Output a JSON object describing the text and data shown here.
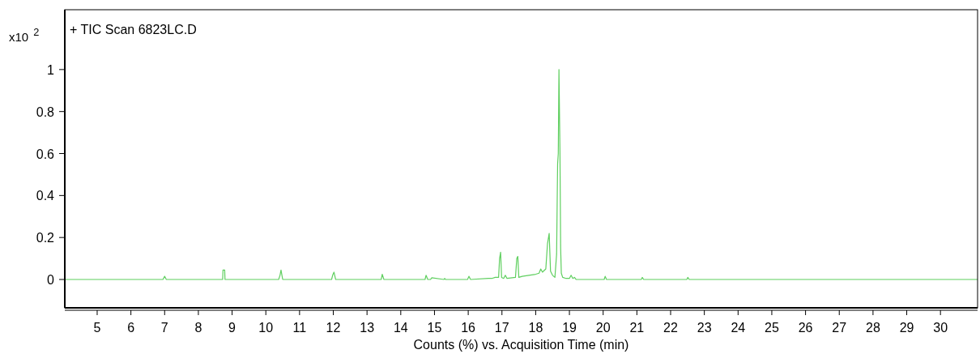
{
  "chart_data": {
    "type": "line",
    "title": "+ TIC Scan 6823LC.D",
    "xlabel": "Counts (%) vs. Acquisition Time (min)",
    "ylabel": "x10$^{2}$",
    "xlim": [
      4.04,
      31.1
    ],
    "xticks": [
      5,
      6,
      7,
      8,
      9,
      10,
      11,
      12,
      13,
      14,
      15,
      16,
      17,
      18,
      19,
      20,
      21,
      22,
      23,
      24,
      25,
      26,
      27,
      28,
      29,
      30
    ],
    "ylim": [
      -0.135,
      1.285
    ],
    "yticks": [
      0,
      0.2,
      0.4,
      0.6,
      0.8,
      1
    ],
    "series": [
      {
        "color": "#5fcf5f",
        "x": [
          4.04,
          6.95,
          7.0,
          7.05,
          8.72,
          8.73,
          8.78,
          8.79,
          10.38,
          10.42,
          10.45,
          10.5,
          11.95,
          11.98,
          12.02,
          12.07,
          13.42,
          13.45,
          13.5,
          14.72,
          14.75,
          14.8,
          14.88,
          14.92,
          15.28,
          15.3,
          15.33,
          15.98,
          16.02,
          16.07,
          16.6,
          16.7,
          16.8,
          16.9,
          16.93,
          16.96,
          16.99,
          17.05,
          17.1,
          17.15,
          17.4,
          17.44,
          17.47,
          17.5,
          17.6,
          17.8,
          18.0,
          18.1,
          18.15,
          18.2,
          18.3,
          18.35,
          18.4,
          18.44,
          18.5,
          18.57,
          18.62,
          18.65,
          18.67,
          18.69,
          18.72,
          18.74,
          18.76,
          18.8,
          18.9,
          19.0,
          19.05,
          19.1,
          19.15,
          19.2,
          20.03,
          20.06,
          20.1,
          21.13,
          21.16,
          21.2,
          22.48,
          22.51,
          22.55,
          31.1
        ],
        "values": [
          0,
          0,
          0.015,
          0,
          0,
          0.045,
          0.045,
          0,
          0,
          0.02,
          0.045,
          0,
          0,
          0.02,
          0.035,
          0,
          0,
          0.025,
          0,
          0,
          0.02,
          0,
          0,
          0.008,
          0,
          0.005,
          0,
          0,
          0.015,
          0,
          0.005,
          0.005,
          0.01,
          0.01,
          0.1,
          0.13,
          0.01,
          0.005,
          0.02,
          0.005,
          0.01,
          0.1,
          0.11,
          0.01,
          0.015,
          0.02,
          0.025,
          0.03,
          0.05,
          0.035,
          0.05,
          0.17,
          0.22,
          0.04,
          0.02,
          0.01,
          0.12,
          0.55,
          0.6,
          1.0,
          0.6,
          0.15,
          0.03,
          0.01,
          0.005,
          0.005,
          0.02,
          0.005,
          0.01,
          0,
          0,
          0.015,
          0,
          0,
          0.01,
          0,
          0,
          0.01,
          0,
          0
        ]
      }
    ]
  }
}
